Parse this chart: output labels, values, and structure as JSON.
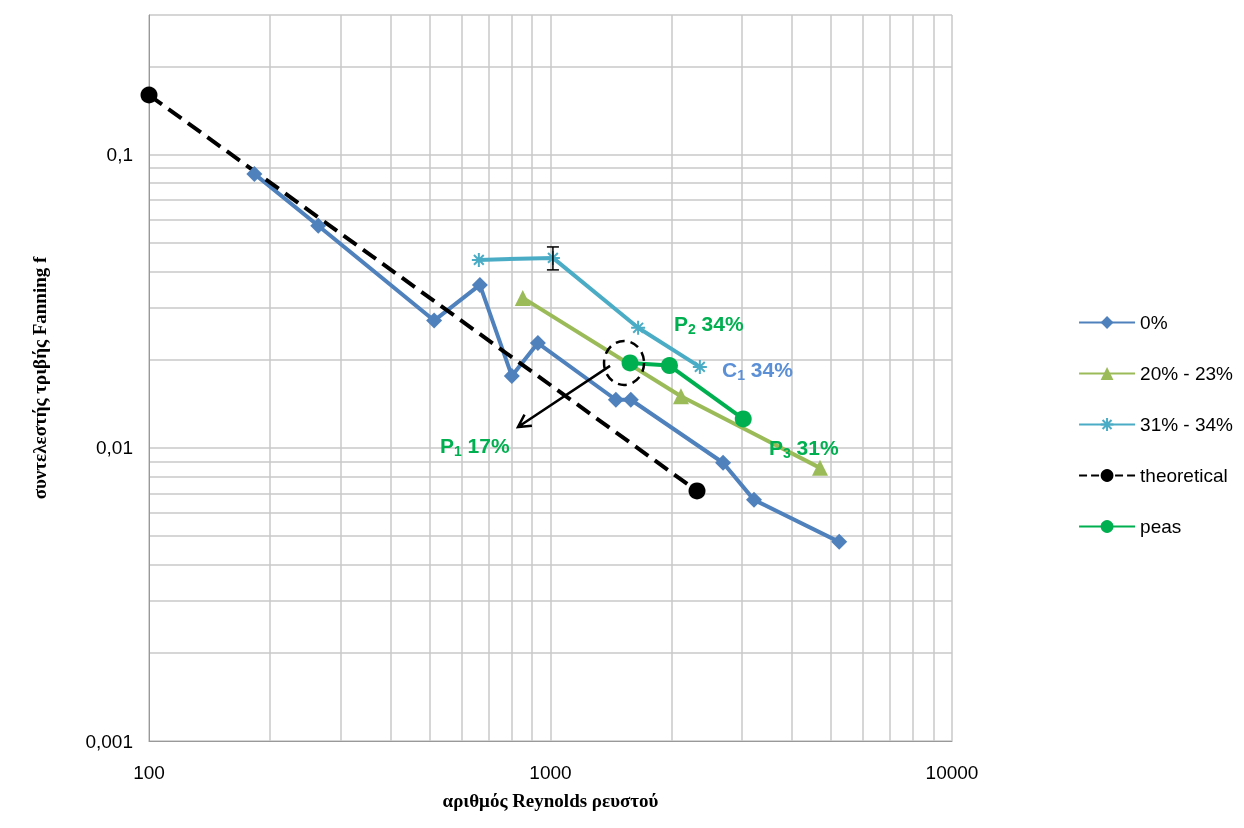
{
  "chart_data": {
    "type": "line",
    "xlabel": "αριθμός Reynolds ρευστού",
    "ylabel": "συντελεστής τριβής Fanning f",
    "log": "xy",
    "grid": true,
    "legend": "right",
    "xlim": [
      100,
      10000
    ],
    "xticks": [
      100,
      1000,
      10000
    ],
    "ylim": [
      0.001,
      0.3
    ],
    "yticks": [
      {
        "value": 0.001,
        "label": "0,001"
      },
      {
        "value": 0.01,
        "label": "0,01"
      },
      {
        "value": 0.1,
        "label": "0,1"
      }
    ],
    "series": [
      {
        "name": "0%",
        "color": "#4f81bd",
        "marker": "diamond",
        "line_style": "solid",
        "x": [
          183,
          264,
          513,
          667,
          801,
          930,
          1455,
          1585,
          2690,
          3212,
          5236
        ],
        "values": [
          0.0861,
          0.0573,
          0.0272,
          0.036,
          0.0176,
          0.0228,
          0.0146,
          0.0146,
          0.0089,
          0.00665,
          0.00478
        ]
      },
      {
        "name": "20% - 23%",
        "color": "#9bbb59",
        "marker": "triangle",
        "line_style": "solid",
        "x": [
          853,
          2113,
          4690
        ],
        "values": [
          0.0325,
          0.015,
          0.00855
        ]
      },
      {
        "name": "31% - 34%",
        "color": "#4bacc6",
        "marker": "cross",
        "line_style": "solid",
        "x": [
          663,
          1014,
          1653,
          2355
        ],
        "values": [
          0.0438,
          0.0445,
          0.0257,
          0.0189
        ],
        "errors": [
          null,
          0.004,
          null,
          null
        ]
      },
      {
        "name": "theoretical",
        "color": "#000000",
        "marker": "circle",
        "line_style": "dashed",
        "x": [
          100,
          2317
        ],
        "values": [
          0.16,
          0.00713
        ]
      },
      {
        "name": "peas",
        "color": "#00b050",
        "marker": "circle",
        "line_style": "solid",
        "x": [
          1578,
          1978,
          3020
        ],
        "values": [
          0.0195,
          0.0191,
          0.01256
        ]
      }
    ],
    "annotations": [
      "P$_{1}$ 17%",
      "P$_{2}$ 34%",
      "C$_{1}$ 34%",
      "P$_{3}$ 31%"
    ]
  }
}
